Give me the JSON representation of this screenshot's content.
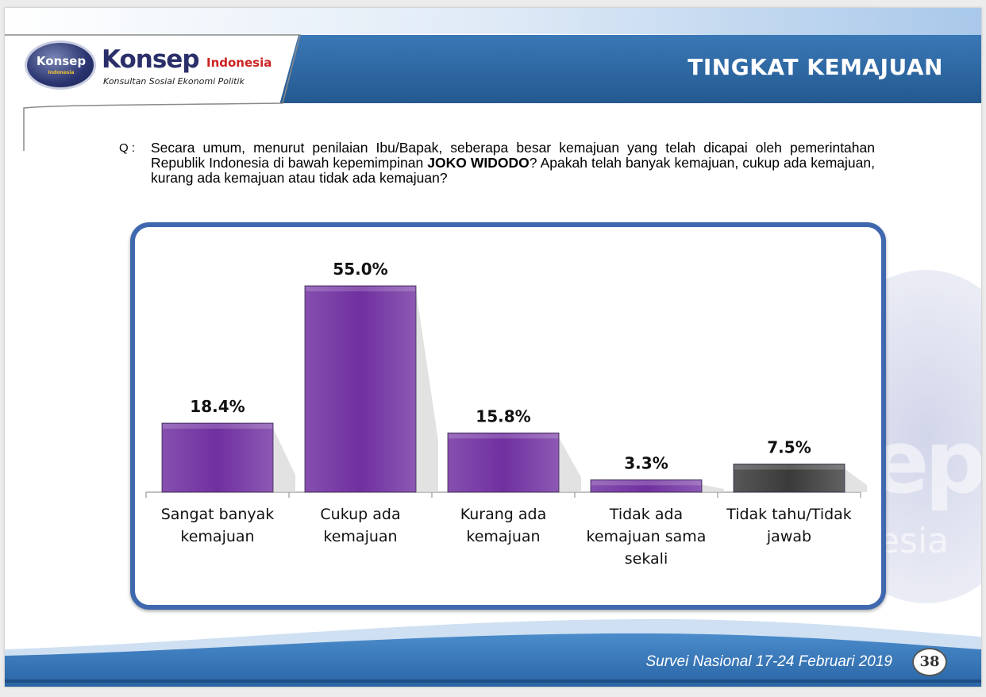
{
  "header": {
    "title": "TINGKAT KEMAJUAN",
    "logo": {
      "badge_text": "Konsep",
      "badge_subtext": "Indonesia",
      "brand": "Konsep",
      "country": "Indonesia",
      "tagline": "Konsultan Sosial Ekonomi Politik"
    }
  },
  "question": {
    "marker": "Q :",
    "text_before_bold": "Secara umum, menurut penilaian Ibu/Bapak, seberapa besar kemajuan yang telah dicapai oleh pemerintahan Republik Indonesia di bawah kepemimpinan ",
    "bold_text": "JOKO WIDODO",
    "text_after_bold": "? Apakah telah banyak kemajuan, cukup ada kemajuan, kurang ada kemajuan atau tidak ada kemajuan?"
  },
  "chart_data": {
    "type": "bar",
    "categories": [
      [
        "Sangat banyak",
        "kemajuan"
      ],
      [
        "Cukup ada",
        "kemajuan"
      ],
      [
        "Kurang ada",
        "kemajuan"
      ],
      [
        "Tidak ada",
        "kemajuan sama",
        "sekali"
      ],
      [
        "Tidak tahu/Tidak",
        "jawab"
      ]
    ],
    "values": [
      18.4,
      55.0,
      15.8,
      3.3,
      7.5
    ],
    "data_labels": [
      "18.4%",
      "55.0%",
      "15.8%",
      "3.3%",
      "7.5%"
    ],
    "bar_colors": [
      "#7030a0",
      "#7030a0",
      "#7030a0",
      "#7030a0",
      "#3a3a3a"
    ],
    "ylim": [
      0,
      55
    ],
    "grid": false,
    "legend": "none"
  },
  "watermark": {
    "text": "ep",
    "text2": "esia"
  },
  "footer": {
    "survey": "Survei Nasional 17-24 Februari 2019",
    "page_number": "38"
  },
  "colors": {
    "header_band": "#2e6aa6",
    "frame_border": "#3f68ae",
    "bar_purple": "#7030a0",
    "bar_dark": "#3a3a3a"
  }
}
